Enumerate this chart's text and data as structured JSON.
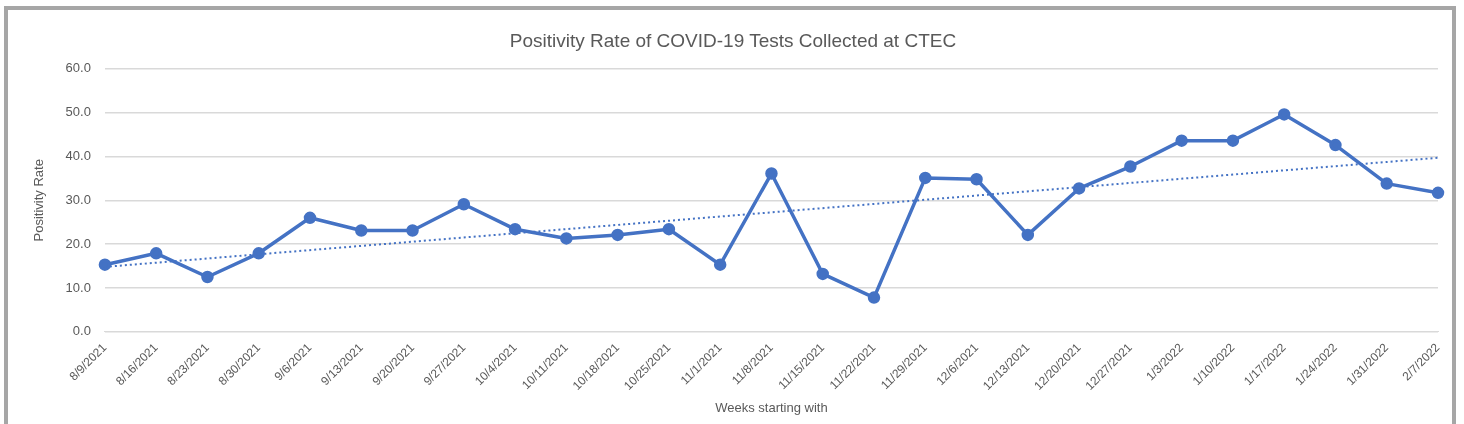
{
  "chart_data": {
    "type": "line",
    "title": "Positivity Rate of COVID-19 Tests Collected at CTEC",
    "xlabel": "Weeks starting with",
    "ylabel": "Positivity Rate",
    "categories": [
      "8/9/2021",
      "8/16/2021",
      "8/23/2021",
      "8/30/2021",
      "9/6/2021",
      "9/13/2021",
      "9/20/2021",
      "9/27/2021",
      "10/4/2021",
      "10/11/2021",
      "10/18/2021",
      "10/25/2021",
      "11/1/2021",
      "11/8/2021",
      "11/15/2021",
      "11/22/2021",
      "11/29/2021",
      "12/6/2021",
      "12/13/2021",
      "12/20/2021",
      "12/27/2021",
      "1/3/2022",
      "1/10/2022",
      "1/17/2022",
      "1/24/2022",
      "1/31/2022",
      "2/7/2022"
    ],
    "series": [
      {
        "color": "#4472c4",
        "marker": "circle",
        "line_style": "solid",
        "values": [
          15.3,
          17.9,
          12.5,
          17.9,
          26.0,
          23.1,
          23.1,
          29.1,
          23.4,
          21.3,
          22.1,
          23.4,
          15.3,
          36.1,
          13.2,
          7.8,
          35.1,
          34.8,
          22.1,
          32.7,
          37.7,
          43.6,
          43.6,
          49.6,
          42.6,
          33.8,
          31.7
        ]
      },
      {
        "type": "line",
        "color": "#4472c4",
        "marker": "none",
        "line_style": "dotted",
        "x": [
          "8/9/2021",
          "2/7/2022"
        ],
        "values": [
          14.8,
          39.7
        ]
      }
    ],
    "ylim": [
      0,
      60
    ],
    "yticks": [
      {
        "value": 0,
        "label": "0.0"
      },
      {
        "value": 10,
        "label": "10.0"
      },
      {
        "value": 20,
        "label": "20.0"
      },
      {
        "value": 30,
        "label": "30.0"
      },
      {
        "value": 40,
        "label": "40.0"
      },
      {
        "value": 50,
        "label": "50.0"
      },
      {
        "value": 60,
        "label": "60.0"
      }
    ],
    "grid": "y",
    "legend": false
  }
}
